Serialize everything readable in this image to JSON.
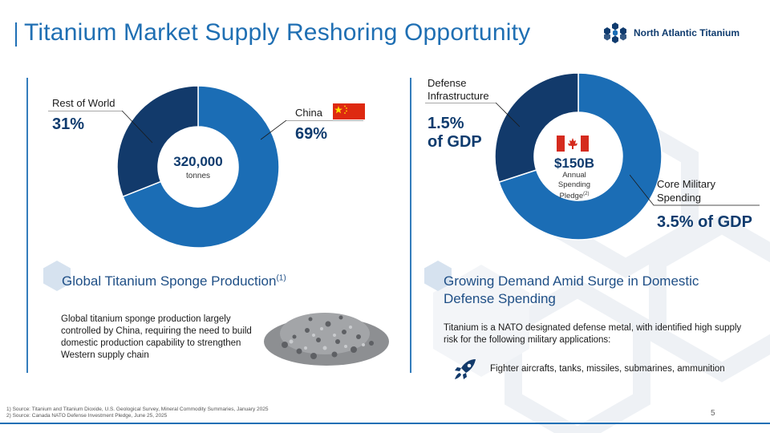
{
  "title": "Titanium Market Supply Reshoring Opportunity",
  "brand": {
    "name": "North Atlantic Titanium",
    "logo_icon": "snowflake-hex-icon"
  },
  "left_chart": {
    "center_value": "320,000",
    "center_unit": "tonnes",
    "slices": [
      {
        "label": "China",
        "value_text": "69%",
        "share": 0.69,
        "color": "#1b6db5",
        "flag": "china-flag-icon"
      },
      {
        "label": "Rest of World",
        "value_text": "31%",
        "share": 0.31,
        "color": "#123a6b"
      }
    ]
  },
  "right_chart": {
    "center_value": "$150B",
    "center_caption_1": "Annual",
    "center_caption_2": "Spending",
    "center_caption_3": "Pledge",
    "center_caption_sup": "(2)",
    "flag": "canada-flag-icon",
    "slices": [
      {
        "label_1": "Core Military",
        "label_2": "Spending",
        "value_text": "3.5% of GDP",
        "share": 0.7,
        "color": "#1b6db5"
      },
      {
        "label_1": "Defense",
        "label_2": "Infrastructure",
        "value_1": "1.5%",
        "value_2": "of GDP",
        "share": 0.3,
        "color": "#123a6b"
      }
    ]
  },
  "left_section": {
    "heading": "Global Titanium Sponge Production",
    "heading_sup": "(1)",
    "body": "Global titanium sponge production largely controlled by China, requiring the need to build domestic production capability to strengthen Western supply chain",
    "image_icon": "titanium-sponge-image"
  },
  "right_section": {
    "heading_1": "Growing Demand Amid Surge in Domestic",
    "heading_2": "Defense Spending",
    "body": "Titanium is a NATO designated defense metal, with identified high supply risk for the following military applications:",
    "bullet_icon": "rocket-icon",
    "bullet_text": "Fighter aircrafts, tanks, missiles, submarines, ammunition"
  },
  "footnotes": [
    "1)  Source: Titanium and Titanium Dioxide, U.S. Geological Survey, Mineral Commodity Summaries, January 2025",
    "2)  Source: Canada NATO Defense Investment Pledge, June 25, 2025"
  ],
  "page_number": "5",
  "colors": {
    "accent": "#1e6fb5",
    "navy": "#123a6b",
    "blue": "#1b6db5"
  }
}
